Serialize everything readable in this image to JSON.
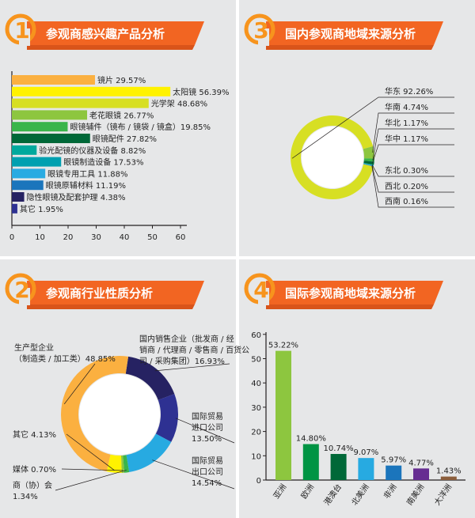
{
  "chart_data": [
    {
      "id": "product",
      "badge": "1",
      "title": "参观商感兴趣产品分析",
      "type": "bar",
      "orientation": "horizontal",
      "categories": [
        "镜片",
        "太阳镜",
        "光学架",
        "老花眼镜",
        "眼镜辅件（镜布 / 镜袋 / 镜盒）",
        "眼镜配件",
        "验光配镜的仪器及设备",
        "眼镜制造设备",
        "眼镜专用工具",
        "眼镜原辅材料",
        "隐性眼镜及配套护理",
        "其它"
      ],
      "values": [
        29.57,
        56.39,
        48.68,
        26.77,
        19.85,
        27.82,
        8.82,
        17.53,
        11.88,
        11.19,
        4.38,
        1.95
      ],
      "labels": [
        "镜片 29.57%",
        "太阳镜 56.39%",
        "光学架 48.68%",
        "老花眼镜 26.77%",
        "眼镜辅件（镜布 / 镜袋 / 镜盒）19.85%",
        "眼镜配件 27.82%",
        "验光配镜的仪器及设备 8.82%",
        "眼镜制造设备 17.53%",
        "眼镜专用工具 11.88%",
        "眼镜原辅材料 11.19%",
        "隐性眼镜及配套护理 4.38%",
        "其它 1.95%"
      ],
      "colors": [
        "#fbb040",
        "#fff200",
        "#d7df23",
        "#8dc63f",
        "#39b54a",
        "#006838",
        "#00a99d",
        "#00a0b0",
        "#29abe2",
        "#1b75bc",
        "#262262",
        "#2e3192"
      ],
      "xlim": [
        0,
        65
      ],
      "xticks": [
        0,
        10,
        20,
        30,
        40,
        50,
        60
      ]
    },
    {
      "id": "domestic",
      "badge": "3",
      "title": "国内参观商地域来源分析",
      "type": "pie",
      "donut": true,
      "categories": [
        "华东",
        "华南",
        "华北",
        "华中",
        "东北",
        "西北",
        "西南"
      ],
      "values": [
        92.26,
        4.74,
        1.17,
        1.17,
        0.3,
        0.2,
        0.16
      ],
      "labels": [
        "华东 92.26%",
        "华南 4.74%",
        "华北 1.17%",
        "华中 1.17%",
        "东北 0.30%",
        "西北 0.20%",
        "西南 0.16%"
      ],
      "colors": [
        "#d7df23",
        "#8dc63f",
        "#39b54a",
        "#006838",
        "#00a99d",
        "#27aae1",
        "#1b75bc"
      ]
    },
    {
      "id": "industry",
      "badge": "2",
      "title": "参观商行业性质分析",
      "type": "pie",
      "donut": true,
      "categories": [
        "生产型企业",
        "国内销售企业",
        "国际贸易进口公司",
        "国际贸易出口公司",
        "商（协）会",
        "媒体",
        "其它"
      ],
      "values": [
        48.85,
        16.93,
        13.5,
        14.54,
        1.34,
        0.7,
        4.13
      ],
      "label_lines": [
        [
          "生产型企业",
          "（制造类 / 加工类）48.85%"
        ],
        [
          "国内销售企业（批发商 / 经",
          "销商 / 代理商 / 零售商 / 百货公",
          "司 / 采购集团）16.93%"
        ],
        [
          "国际贸易",
          "进口公司",
          "13.50%"
        ],
        [
          "国际贸易",
          "出口公司",
          "14.54%"
        ],
        [
          "商（协）会",
          "1.34%"
        ],
        [
          "媒体 0.70%"
        ],
        [
          "其它 4.13%"
        ]
      ],
      "colors": [
        "#fbb040",
        "#262262",
        "#2e3192",
        "#27aae1",
        "#39b54a",
        "#8dc63f",
        "#fff200"
      ]
    },
    {
      "id": "international",
      "badge": "4",
      "title": "国际参观商地域来源分析",
      "type": "bar",
      "orientation": "vertical",
      "categories": [
        "亚洲",
        "欧洲",
        "港澳台",
        "北美洲",
        "非洲",
        "南美洲",
        "大洋洲"
      ],
      "values": [
        53.22,
        14.8,
        10.74,
        9.07,
        5.97,
        4.77,
        1.43
      ],
      "value_labels": [
        "53.22%",
        "14.80%",
        "10.74%",
        "9.07%",
        "5.97%",
        "4.77%",
        "1.43%"
      ],
      "colors": [
        "#8dc63f",
        "#009444",
        "#006838",
        "#27aae1",
        "#1b75bc",
        "#662d91",
        "#8b5e3c"
      ],
      "ylim": [
        0,
        60
      ],
      "yticks": [
        0,
        10,
        20,
        30,
        40,
        50,
        60
      ]
    }
  ]
}
